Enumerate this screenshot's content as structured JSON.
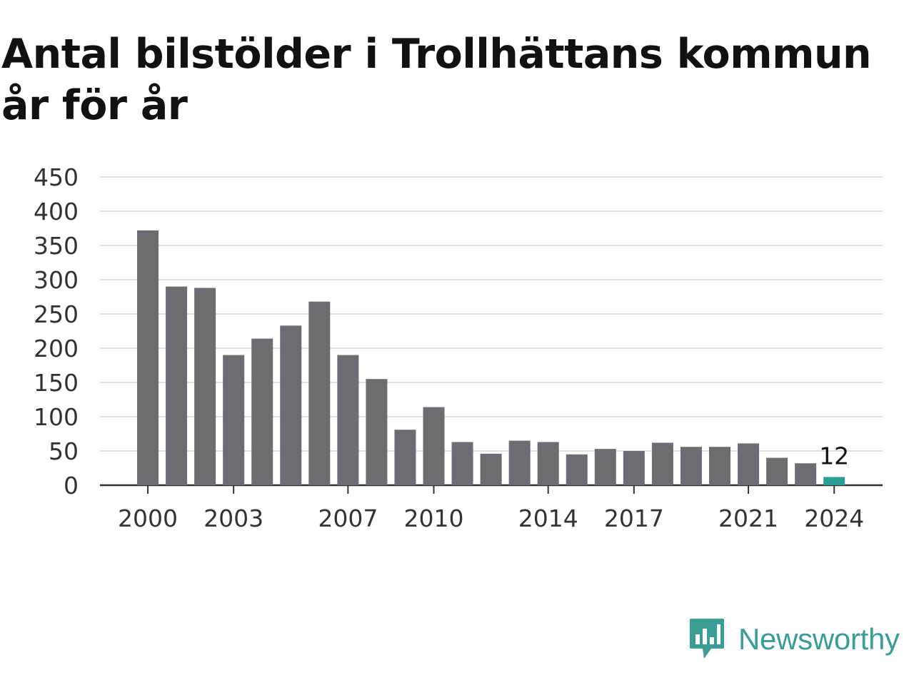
{
  "chart_data": {
    "type": "bar",
    "title": "Antal bilstölder i Trollhättans kommun år för år",
    "xlabel": "",
    "ylabel": "",
    "categories": [
      "2000",
      "2001",
      "2002",
      "2003",
      "2004",
      "2005",
      "2006",
      "2007",
      "2008",
      "2009",
      "2010",
      "2011",
      "2012",
      "2013",
      "2014",
      "2015",
      "2016",
      "2017",
      "2018",
      "2019",
      "2020",
      "2021",
      "2022",
      "2023",
      "2024"
    ],
    "x_tick_labels": [
      "2000",
      "2003",
      "2007",
      "2010",
      "2014",
      "2017",
      "2021",
      "2024"
    ],
    "values": [
      372,
      290,
      288,
      190,
      214,
      233,
      268,
      190,
      155,
      81,
      114,
      63,
      46,
      65,
      63,
      45,
      53,
      50,
      62,
      56,
      56,
      61,
      40,
      32,
      12
    ],
    "ylim": [
      0,
      450
    ],
    "y_ticks": [
      0,
      50,
      100,
      150,
      200,
      250,
      300,
      350,
      400,
      450
    ],
    "grid": true,
    "colors": {
      "bar": "#6d6c72",
      "highlight": "#2a9d94"
    },
    "highlight_index": 24,
    "data_label": {
      "index": 24,
      "text": "12"
    }
  },
  "brand": {
    "name": "Newsworthy",
    "color": "#3a9e96",
    "icon": "newsworthy-logo-icon"
  }
}
